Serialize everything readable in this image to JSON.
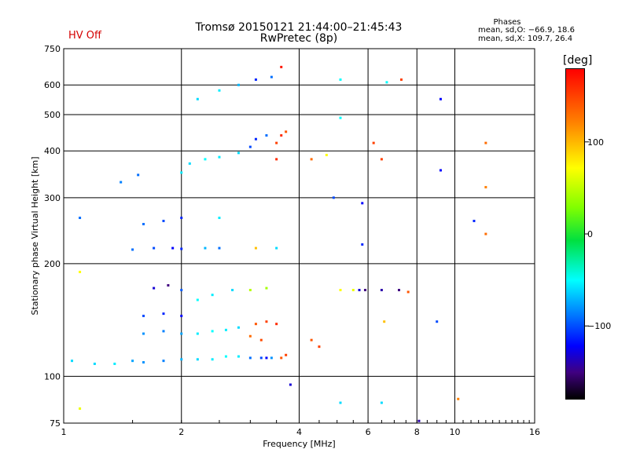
{
  "header": {
    "title_line1": "Tromsø 20150121 21:44:00–21:45:43",
    "title_line2": "RwPretec (8p)",
    "status": "HV Off",
    "stats_heading": "Phases",
    "stats_o": "mean, sd,O: −66.9, 18.6",
    "stats_x": "mean, sd,X: 109.7, 26.4"
  },
  "colorbar": {
    "unit_label": "[deg]",
    "ticks": [
      {
        "value": 100,
        "label": "100"
      },
      {
        "value": 0,
        "label": "0"
      },
      {
        "value": -100,
        "label": "−100"
      }
    ],
    "range": [
      -180,
      180
    ]
  },
  "chart_data": {
    "type": "scatter",
    "title": "Tromsø 20150121 21:44:00–21:45:43",
    "subtitle": "RwPretec (8p)",
    "xlabel": "Frequency [MHz]",
    "ylabel": "Stationary phase Virtual Height [km]",
    "x_scale": "log2",
    "y_scale": "log",
    "xlim": [
      1,
      16
    ],
    "ylim": [
      75,
      750
    ],
    "x_ticks": [
      1,
      2,
      4,
      6,
      8,
      10,
      16
    ],
    "x_tick_labels": [
      "1",
      "2",
      "4",
      "6",
      "8",
      "10",
      "16"
    ],
    "y_ticks": [
      75,
      100,
      200,
      300,
      400,
      500,
      600,
      750
    ],
    "y_tick_labels": [
      "75",
      "100",
      "200",
      "300",
      "400",
      "500",
      "600",
      "750"
    ],
    "grid": true,
    "color_encodes": "phase [deg]",
    "series": [
      {
        "values": [
          [
            1.05,
            110,
            -60
          ],
          [
            1.2,
            108,
            -60
          ],
          [
            1.35,
            108,
            -55
          ],
          [
            1.5,
            110,
            -75
          ],
          [
            1.6,
            109,
            -80
          ],
          [
            1.8,
            110,
            -85
          ],
          [
            2.0,
            111,
            -70
          ],
          [
            2.2,
            111,
            -60
          ],
          [
            2.4,
            111,
            -55
          ],
          [
            2.6,
            113,
            -50
          ],
          [
            2.8,
            113,
            -55
          ],
          [
            3.0,
            112,
            -90
          ],
          [
            3.2,
            112,
            -100
          ],
          [
            3.4,
            112,
            -80
          ],
          [
            3.6,
            112,
            140
          ],
          [
            3.7,
            114,
            150
          ],
          [
            1.6,
            130,
            -80
          ],
          [
            1.8,
            132,
            -85
          ],
          [
            2.0,
            130,
            -75
          ],
          [
            2.2,
            130,
            -55
          ],
          [
            2.4,
            132,
            -50
          ],
          [
            2.6,
            133,
            -55
          ],
          [
            2.8,
            135,
            -60
          ],
          [
            1.6,
            145,
            -100
          ],
          [
            1.8,
            147,
            -110
          ],
          [
            2.0,
            145,
            -120
          ],
          [
            1.7,
            172,
            -130
          ],
          [
            1.85,
            175,
            -150
          ],
          [
            2.0,
            170,
            -95
          ],
          [
            2.2,
            160,
            -50
          ],
          [
            2.4,
            165,
            -55
          ],
          [
            2.7,
            170,
            -60
          ],
          [
            3.0,
            170,
            60
          ],
          [
            3.3,
            172,
            50
          ],
          [
            1.5,
            218,
            -90
          ],
          [
            1.7,
            220,
            -100
          ],
          [
            1.9,
            220,
            -120
          ],
          [
            2.0,
            219,
            -110
          ],
          [
            2.3,
            220,
            -70
          ],
          [
            2.5,
            220,
            -90
          ],
          [
            3.1,
            220,
            110
          ],
          [
            3.5,
            220,
            -60
          ],
          [
            1.6,
            255,
            -90
          ],
          [
            1.8,
            260,
            -100
          ],
          [
            2.0,
            265,
            -110
          ],
          [
            2.5,
            265,
            -55
          ],
          [
            1.4,
            330,
            -85
          ],
          [
            1.55,
            345,
            -90
          ],
          [
            2.0,
            350,
            -55
          ],
          [
            2.1,
            370,
            -60
          ],
          [
            2.3,
            380,
            -50
          ],
          [
            2.5,
            385,
            -55
          ],
          [
            2.8,
            395,
            -60
          ],
          [
            3.0,
            410,
            -100
          ],
          [
            3.1,
            430,
            -110
          ],
          [
            3.3,
            440,
            -90
          ],
          [
            3.5,
            420,
            150
          ],
          [
            3.6,
            440,
            160
          ],
          [
            3.7,
            450,
            140
          ],
          [
            3.5,
            380,
            160
          ],
          [
            2.2,
            550,
            -60
          ],
          [
            2.5,
            580,
            -55
          ],
          [
            2.8,
            600,
            -70
          ],
          [
            3.1,
            620,
            -110
          ],
          [
            3.4,
            630,
            -90
          ],
          [
            3.6,
            670,
            170
          ],
          [
            3.1,
            138,
            140
          ],
          [
            3.3,
            140,
            150
          ],
          [
            3.5,
            138,
            160
          ],
          [
            3.0,
            128,
            130
          ],
          [
            3.2,
            125,
            145
          ],
          [
            3.3,
            112,
            -120
          ],
          [
            4.3,
            380,
            130
          ],
          [
            4.7,
            390,
            100
          ],
          [
            4.9,
            300,
            -100
          ],
          [
            5.1,
            170,
            100
          ],
          [
            5.5,
            170,
            90
          ],
          [
            5.7,
            170,
            -130
          ],
          [
            5.9,
            170,
            -150
          ],
          [
            6.5,
            170,
            -140
          ],
          [
            7.2,
            170,
            -150
          ],
          [
            7.6,
            168,
            140
          ],
          [
            5.8,
            225,
            -110
          ],
          [
            5.8,
            290,
            -120
          ],
          [
            5.1,
            620,
            -50
          ],
          [
            5.1,
            490,
            -50
          ],
          [
            6.7,
            610,
            -50
          ],
          [
            7.3,
            620,
            150
          ],
          [
            6.5,
            380,
            150
          ],
          [
            6.2,
            420,
            150
          ],
          [
            9.2,
            550,
            -120
          ],
          [
            9.2,
            355,
            -120
          ],
          [
            11.2,
            260,
            -110
          ],
          [
            12.0,
            420,
            130
          ],
          [
            12.0,
            320,
            120
          ],
          [
            12.0,
            240,
            130
          ],
          [
            9.0,
            140,
            -100
          ],
          [
            10.2,
            87,
            120
          ],
          [
            5.1,
            85,
            -60
          ],
          [
            6.5,
            85,
            -60
          ],
          [
            8.1,
            76,
            -140
          ],
          [
            1.1,
            82,
            90
          ],
          [
            1.1,
            190,
            100
          ],
          [
            1.1,
            265,
            -90
          ],
          [
            3.8,
            95,
            -130
          ],
          [
            4.3,
            125,
            140
          ],
          [
            4.5,
            120,
            150
          ],
          [
            6.6,
            140,
            110
          ]
        ]
      }
    ]
  }
}
